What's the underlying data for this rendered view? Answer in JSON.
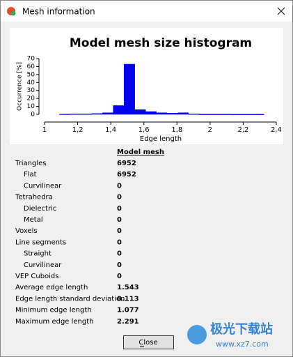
{
  "window": {
    "title": "Mesh information"
  },
  "chart_data": {
    "type": "histogram",
    "title": "Model mesh size histogram",
    "xlabel": "Edge length",
    "ylabel": "Occurrence [%]",
    "bins": [
      1.09,
      1.155,
      1.22,
      1.285,
      1.35,
      1.415,
      1.48,
      1.545,
      1.61,
      1.675,
      1.74,
      1.805,
      1.87,
      1.935,
      2.0,
      2.065,
      2.13,
      2.195,
      2.26,
      2.325
    ],
    "values": [
      0.3,
      0.5,
      0.5,
      1,
      2,
      11,
      63,
      6,
      3.5,
      2,
      1.5,
      2,
      0.5,
      0.2,
      0.2,
      0.2,
      0.1,
      0.1,
      0.1
    ],
    "color": "#0000ee",
    "xlim": [
      1,
      2.4
    ],
    "xticks": [
      1,
      {
        "value": 1.2,
        "label": "1,2"
      },
      {
        "value": 1.4,
        "label": "1,4"
      },
      {
        "value": 1.6,
        "label": "1,6"
      },
      {
        "value": 1.8,
        "label": "1,8"
      },
      2,
      {
        "value": 2.2,
        "label": "2,2"
      },
      {
        "value": 2.4,
        "label": "2,4"
      }
    ],
    "ylim": [
      0,
      70
    ],
    "yticks": [
      0,
      10,
      20,
      30,
      40,
      50,
      60,
      70
    ]
  },
  "table": {
    "header": "Model mesh",
    "rows": [
      {
        "label": "Triangles",
        "value": 6952,
        "indent": false
      },
      {
        "label": "Flat",
        "value": 6952,
        "indent": true
      },
      {
        "label": "Curvilinear",
        "value": 0,
        "indent": true
      },
      {
        "label": "Tetrahedra",
        "value": 0,
        "indent": false
      },
      {
        "label": "Dielectric",
        "value": 0,
        "indent": true
      },
      {
        "label": "Metal",
        "value": 0,
        "indent": true
      },
      {
        "label": "Voxels",
        "value": 0,
        "indent": false
      },
      {
        "label": "Line segments",
        "value": 0,
        "indent": false
      },
      {
        "label": "Straight",
        "value": 0,
        "indent": true
      },
      {
        "label": "Curvilinear",
        "value": 0,
        "indent": true
      },
      {
        "label": "VEP Cuboids",
        "value": 0,
        "indent": false
      },
      {
        "label": "Average edge length",
        "value": 1.543,
        "indent": false
      },
      {
        "label": "Edge length standard deviation",
        "value": 0.113,
        "indent": false
      },
      {
        "label": "Minimum edge length",
        "value": 1.077,
        "indent": false
      },
      {
        "label": "Maximum edge length",
        "value": 2.291,
        "indent": false
      }
    ]
  },
  "button": {
    "label": "Close"
  },
  "watermark": {
    "name": "极光下载站",
    "url": "www.xz7.com"
  }
}
